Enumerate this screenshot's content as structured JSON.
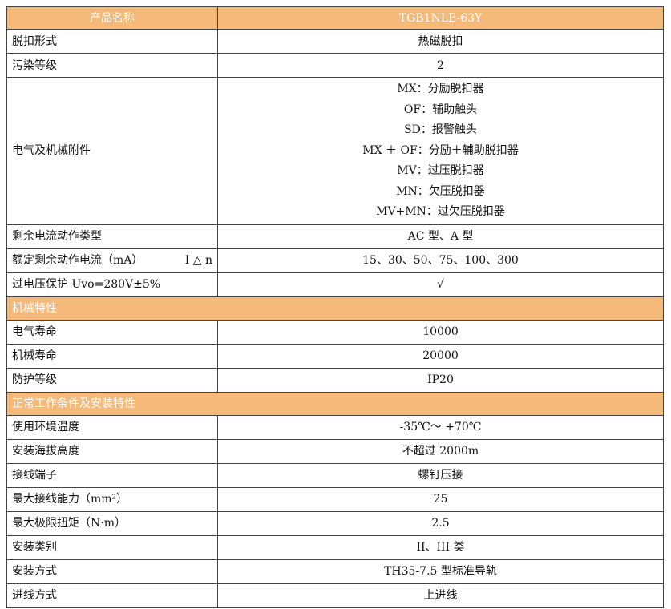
{
  "header": {
    "col1": "产品名称",
    "col2": "TGB1NLE-63Y"
  },
  "rows1": [
    {
      "k": "脱扣形式",
      "v": "热磁脱扣"
    },
    {
      "k": "污染等级",
      "v": "2"
    }
  ],
  "accessories": {
    "k": "电气及机械附件",
    "items": [
      "MX：分励脱扣器",
      "OF：辅助触头",
      "SD：报警触头",
      "MX ＋ OF：分励＋辅助脱扣器",
      "MV：过压脱扣器",
      "MN：欠压脱扣器",
      "MV+MN：过欠压脱扣器"
    ]
  },
  "rows2": [
    {
      "k": "剩余电流动作类型",
      "v": "AC 型、A 型"
    },
    {
      "k": "额定剩余动作电流（mA）",
      "k2": "I △ n",
      "v": "15、30、50、75、100、300"
    },
    {
      "k": "过电压保护 Uvo=280V±5%",
      "v": "√"
    }
  ],
  "section1": "机械特性",
  "rows3": [
    {
      "k": "电气寿命",
      "v": "10000"
    },
    {
      "k": "机械寿命",
      "v": "20000"
    },
    {
      "k": "防护等级",
      "v": "IP20"
    }
  ],
  "section2": "正常工作条件及安装特性",
  "rows4": [
    {
      "k": "使用环境温度",
      "v": "-35℃～ +70℃"
    },
    {
      "k": "安装海拔高度",
      "v": "不超过 2000m"
    },
    {
      "k": "接线端子",
      "v": "螺钉压接"
    },
    {
      "k": "最大接线能力（mm²）",
      "v": "25"
    },
    {
      "k": "最大极限扭矩（N·m）",
      "v": "2.5"
    },
    {
      "k": "安装类别",
      "v": "II、III 类"
    },
    {
      "k": "安装方式",
      "v": "TH35-7.5 型标准导轨"
    },
    {
      "k": "进线方式",
      "v": "上进线"
    }
  ],
  "colors": {
    "header_bg": "#f5b97a",
    "header_text": "#ffffff",
    "border": "#444444"
  }
}
